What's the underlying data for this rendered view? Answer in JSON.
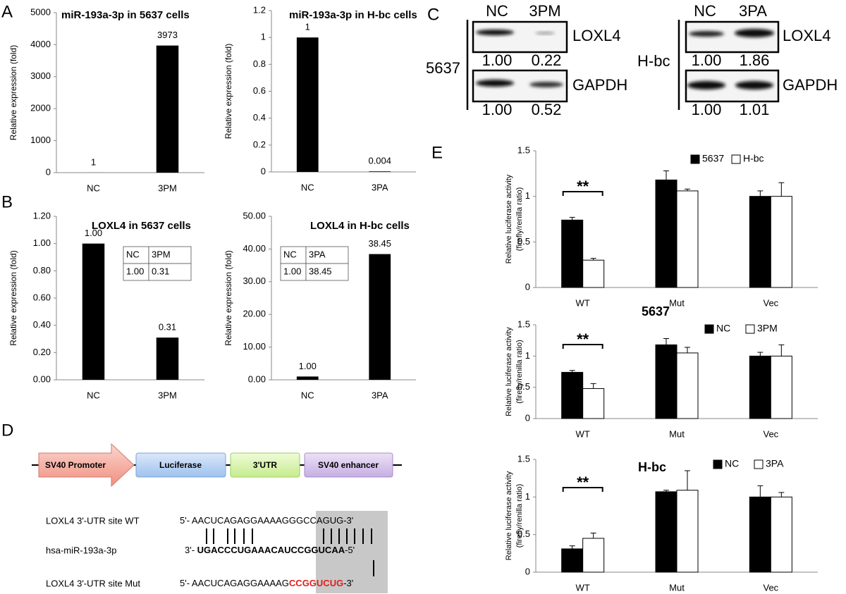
{
  "panels": [
    "A",
    "B",
    "C",
    "D",
    "E"
  ],
  "chart_data": [
    {
      "type": "bar",
      "title": "miR-193a-3p in 5637 cells",
      "ylabel": "Relative expression (fold)",
      "categories": [
        "NC",
        "3PM"
      ],
      "values": [
        1,
        3973
      ],
      "color": "#000000",
      "ylim": [
        0,
        5000
      ],
      "yticks": [
        0,
        1000,
        2000,
        3000,
        4000,
        5000
      ]
    },
    {
      "type": "bar",
      "title": "miR-193a-3p in H-bc cells",
      "ylabel": "Relative expression (fold)",
      "categories": [
        "NC",
        "3PA"
      ],
      "values": [
        1,
        0.004
      ],
      "color": "#000000",
      "ylim": [
        0,
        1.2
      ],
      "yticks": [
        0,
        0.2,
        0.4,
        0.6,
        0.8,
        1,
        1.2
      ]
    },
    {
      "type": "bar",
      "title": "LOXL4 in 5637 cells",
      "ylabel": "Relative expression (fold)",
      "categories": [
        "NC",
        "3PM"
      ],
      "values": [
        1.0,
        0.31
      ],
      "value_labels": [
        "1.00",
        "0.31"
      ],
      "color": "#000000",
      "ylim": [
        0,
        1.2
      ],
      "yticks": [
        {
          "value": 0,
          "label": "0.00"
        },
        {
          "value": 0.2,
          "label": "0.20"
        },
        {
          "value": 0.4,
          "label": "0.40"
        },
        {
          "value": 0.6,
          "label": "0.60"
        },
        {
          "value": 0.8,
          "label": "0.80"
        },
        {
          "value": 1,
          "label": "1.00"
        },
        {
          "value": 1.2,
          "label": "1.20"
        }
      ],
      "table": [
        [
          "NC",
          "3PM"
        ],
        [
          "1.00",
          "0.31"
        ]
      ]
    },
    {
      "type": "bar",
      "title": "LOXL4 in H-bc cells",
      "ylabel": "Relative expression (fold)",
      "categories": [
        "NC",
        "3PA"
      ],
      "values": [
        1.0,
        38.45
      ],
      "value_labels": [
        "1.00",
        "38.45"
      ],
      "color": "#000000",
      "ylim": [
        0,
        50
      ],
      "yticks": [
        {
          "value": 0,
          "label": "0.00"
        },
        {
          "value": 10,
          "label": "10.00"
        },
        {
          "value": 20,
          "label": "20.00"
        },
        {
          "value": 30,
          "label": "30.00"
        },
        {
          "value": 40,
          "label": "40.00"
        },
        {
          "value": 50,
          "label": "50.00"
        }
      ],
      "table": [
        [
          "NC",
          "3PA"
        ],
        [
          "1.00",
          "38.45"
        ]
      ]
    },
    {
      "type": "grouped-bar",
      "ylabel": [
        "Relative luciferase activity",
        "(firefly/renilla ratio)"
      ],
      "categories": [
        "WT",
        "Mut",
        "Vec"
      ],
      "series": [
        {
          "name": "5637",
          "color": "#000000",
          "values": [
            0.74,
            1.18,
            1.0
          ],
          "errors": [
            0.03,
            0.1,
            0.06
          ]
        },
        {
          "name": "H-bc",
          "color": "#ffffff",
          "values": [
            0.3,
            1.06,
            1.0
          ],
          "errors": [
            0.02,
            0.02,
            0.15
          ]
        }
      ],
      "ylim": [
        0,
        1.5
      ],
      "yticks": [
        0,
        0.5,
        1,
        1.5
      ],
      "annotation": "**"
    },
    {
      "type": "grouped-bar",
      "title": "5637",
      "ylabel": [
        "Relative luciferase activity",
        "(firefly/renilla ratio)"
      ],
      "categories": [
        "WT",
        "Mut",
        "Vec"
      ],
      "series": [
        {
          "name": "NC",
          "color": "#000000",
          "values": [
            0.74,
            1.18,
            1.0
          ],
          "errors": [
            0.03,
            0.1,
            0.06
          ]
        },
        {
          "name": "3PM",
          "color": "#ffffff",
          "values": [
            0.48,
            1.05,
            1.0
          ],
          "errors": [
            0.08,
            0.09,
            0.18
          ]
        }
      ],
      "ylim": [
        0,
        1.5
      ],
      "yticks": [
        0,
        0.5,
        1,
        1.5
      ],
      "annotation": "**"
    },
    {
      "type": "grouped-bar",
      "title": "H-bc",
      "ylabel": [
        "Relative luciferase activity",
        "(firefly/renilla ratio)"
      ],
      "categories": [
        "WT",
        "Mut",
        "Vec"
      ],
      "series": [
        {
          "name": "NC",
          "color": "#000000",
          "values": [
            0.31,
            1.07,
            1.0
          ],
          "errors": [
            0.04,
            0.02,
            0.15
          ]
        },
        {
          "name": "3PA",
          "color": "#ffffff",
          "values": [
            0.45,
            1.09,
            1.0
          ],
          "errors": [
            0.07,
            0.26,
            0.06
          ]
        }
      ],
      "ylim": [
        0,
        1.5
      ],
      "yticks": [
        0,
        0.5,
        1,
        1.5
      ],
      "annotation": "**"
    }
  ],
  "blots": [
    {
      "cell": "5637",
      "lanes": [
        "NC",
        "3PM"
      ],
      "proteins": [
        "LOXL4",
        "GAPDH"
      ],
      "quant": [
        [
          "1.00",
          "0.22"
        ],
        [
          "1.00",
          "0.52"
        ]
      ]
    },
    {
      "cell": "H-bc",
      "lanes": [
        "NC",
        "3PA"
      ],
      "proteins": [
        "LOXL4",
        "GAPDH"
      ],
      "quant": [
        [
          "1.00",
          "1.86"
        ],
        [
          "1.00",
          "1.01"
        ]
      ]
    }
  ],
  "diagram": {
    "elements": [
      "SV40 Promoter",
      "Luciferase",
      "3'UTR",
      "SV40 enhancer"
    ],
    "sequences": [
      {
        "label": "LOXL4 3'-UTR site  WT",
        "parts": [
          "5'- AACUCAGAGGAAAAG",
          "GGCCAGUG",
          "-3'"
        ]
      },
      {
        "label": "hsa-miR-193a-3p",
        "parts": [
          "3'- ",
          "UGACCCUGAAACAUCCGGUCAA",
          "-5'"
        ]
      },
      {
        "label": "LOXL4 3'-UTR site Mut",
        "parts": [
          "5'- AACUCAGAGGAAAAG",
          "CCGGUCUG",
          "-3'"
        ]
      }
    ]
  }
}
